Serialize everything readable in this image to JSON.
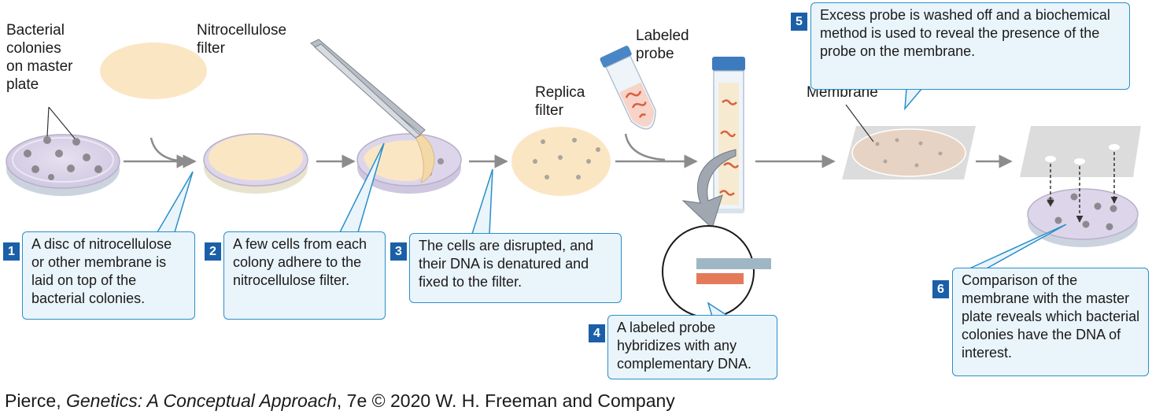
{
  "labels": {
    "master_plate": "Bacterial\ncolonies\non master\nplate",
    "nitrocellulose": "Nitrocellulose\nfilter",
    "replica": "Replica\nfilter",
    "probe": "Labeled\nprobe",
    "membrane": "Membrane"
  },
  "steps": [
    {
      "num": "1",
      "text": "A disc of nitrocellulose or other membrane is laid on top of the bacterial colonies."
    },
    {
      "num": "2",
      "text": "A few cells from each colony adhere to the nitrocellulose filter."
    },
    {
      "num": "3",
      "text": "The cells are disrupted, and their DNA is denatured and fixed to the filter."
    },
    {
      "num": "4",
      "text": "A labeled probe hybridizes with any complementary DNA."
    },
    {
      "num": "5",
      "text": "Excess probe is washed off and a biochemical method is used to reveal the presence of the probe on the membrane."
    },
    {
      "num": "6",
      "text": "Comparison of the membrane with the master plate reveals which bacterial colonies have the DNA of interest."
    }
  ],
  "credit": {
    "author": "Pierce, ",
    "book": "Genetics: A Conceptual Approach",
    "rest": ", 7e © 2020 W. H. Freeman and Company"
  },
  "colors": {
    "dish_purple": "#ddd6ea",
    "filter_tan": "#fbe6c4",
    "callout_fill": "#eaf4fb",
    "callout_border": "#2a8fc8",
    "step_number": "#1b5fa8",
    "probe_orange": "#e57a5a",
    "dna_bar": "#9fb7c4",
    "membrane_gray": "#dcdcdc"
  }
}
